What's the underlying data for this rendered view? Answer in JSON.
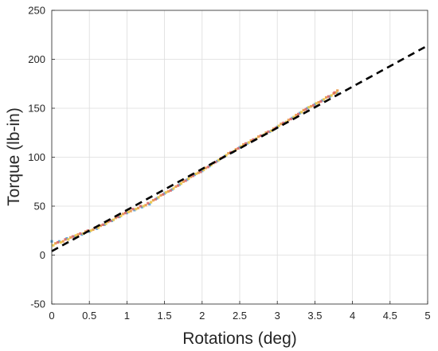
{
  "chart_data": {
    "type": "scatter",
    "title": "",
    "xlabel": "Rotations (deg)",
    "ylabel": "Torque (lb-in)",
    "xlim": [
      0,
      5
    ],
    "ylim": [
      -50,
      250
    ],
    "x_ticks": [
      "0",
      "0.5",
      "1",
      "1.5",
      "2",
      "2.5",
      "3",
      "3.5",
      "4",
      "4.5",
      "5"
    ],
    "y_ticks": [
      "-50",
      "0",
      "50",
      "100",
      "150",
      "200",
      "250"
    ],
    "grid": true,
    "fit_line": {
      "style": "dashed",
      "color": "#000000",
      "x": [
        0,
        5
      ],
      "y": [
        4,
        214
      ]
    },
    "series": [
      {
        "color": "#4a9ad4",
        "x": [
          0.0,
          0.1,
          0.2,
          0.3,
          0.4,
          0.5,
          0.6,
          0.7,
          0.8,
          0.9,
          1.0,
          1.1,
          1.2,
          1.3,
          1.4,
          1.5,
          1.6,
          1.7,
          1.8,
          1.9,
          2.0,
          2.1,
          2.2,
          2.3,
          2.4,
          2.5,
          2.6,
          2.7,
          2.8,
          2.9,
          3.0,
          3.1,
          3.2,
          3.3,
          3.4,
          3.5,
          3.6,
          3.7,
          3.8
        ],
        "y": [
          14,
          14,
          17,
          19,
          21,
          24,
          27,
          31,
          35,
          39,
          43,
          46,
          49,
          52,
          58,
          63,
          67,
          72,
          77,
          82,
          86,
          91,
          96,
          101,
          105,
          110,
          114,
          118,
          122,
          126,
          131,
          135,
          140,
          145,
          150,
          154,
          158,
          162,
          165
        ]
      },
      {
        "color": "#e8923a",
        "x": [
          0.05,
          0.15,
          0.25,
          0.35,
          0.45,
          0.55,
          0.65,
          0.75,
          0.85,
          0.95,
          1.05,
          1.15,
          1.25,
          1.35,
          1.45,
          1.55,
          1.65,
          1.75,
          1.85,
          1.95,
          2.05,
          2.15,
          2.25,
          2.35,
          2.45,
          2.55,
          2.65,
          2.75,
          2.85,
          2.95,
          3.05,
          3.15,
          3.25,
          3.35,
          3.45,
          3.55,
          3.65,
          3.75,
          3.8
        ],
        "y": [
          12,
          14,
          18,
          21,
          24,
          26,
          30,
          34,
          38,
          42,
          45,
          48,
          51,
          56,
          61,
          65,
          70,
          75,
          80,
          84,
          89,
          94,
          99,
          104,
          108,
          113,
          117,
          121,
          125,
          129,
          134,
          138,
          143,
          148,
          152,
          156,
          161,
          165,
          168
        ]
      },
      {
        "color": "#e8c23a",
        "x": [
          0.02,
          0.12,
          0.22,
          0.32,
          0.42,
          0.52,
          0.62,
          0.72,
          0.82,
          0.92,
          1.02,
          1.12,
          1.22,
          1.32,
          1.42,
          1.52,
          1.62,
          1.72,
          1.82,
          1.92,
          2.02,
          2.12,
          2.22,
          2.32,
          2.42,
          2.52,
          2.62,
          2.72,
          2.82,
          2.92,
          3.02,
          3.12,
          3.22,
          3.32,
          3.42,
          3.52,
          3.62,
          3.72,
          3.78
        ],
        "y": [
          10,
          13,
          16,
          20,
          22,
          25,
          28,
          32,
          36,
          40,
          44,
          47,
          50,
          54,
          59,
          64,
          68,
          73,
          78,
          83,
          87,
          92,
          97,
          102,
          106,
          111,
          115,
          119,
          123,
          127,
          132,
          136,
          141,
          146,
          151,
          155,
          159,
          163,
          166
        ]
      },
      {
        "color": "#d95f5f",
        "x": [
          0.08,
          0.18,
          0.28,
          0.38,
          0.48,
          0.58,
          0.68,
          0.78,
          0.88,
          0.98,
          1.08,
          1.18,
          1.28,
          1.38,
          1.48,
          1.58,
          1.68,
          1.78,
          1.88,
          1.98,
          2.08,
          2.18,
          2.28,
          2.38,
          2.48,
          2.58,
          2.68,
          2.78,
          2.88,
          2.98,
          3.08,
          3.18,
          3.28,
          3.38,
          3.48,
          3.58,
          3.68,
          3.76
        ],
        "y": [
          13,
          16,
          19,
          22,
          25,
          28,
          31,
          35,
          39,
          43,
          47,
          50,
          53,
          57,
          62,
          66,
          71,
          76,
          81,
          85,
          90,
          95,
          100,
          105,
          109,
          114,
          118,
          122,
          126,
          130,
          135,
          139,
          144,
          149,
          153,
          157,
          162,
          166
        ]
      }
    ]
  }
}
